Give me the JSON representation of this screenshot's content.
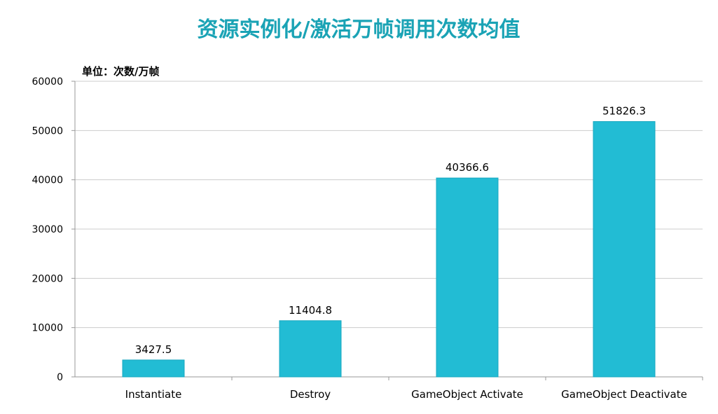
{
  "chart_data": {
    "type": "bar",
    "title": "资源实例化/激活万帧调用次数均值",
    "unit_label": "单位：次数/万帧",
    "categories": [
      "Instantiate",
      "Destroy",
      "GameObject Activate",
      "GameObject Deactivate"
    ],
    "values": [
      3427.5,
      11404.8,
      40366.6,
      51826.3
    ],
    "value_labels": [
      "3427.5",
      "11404.8",
      "40366.6",
      "51826.3"
    ],
    "ylim": [
      0,
      60000
    ],
    "yticks": [
      0,
      10000,
      20000,
      30000,
      40000,
      50000,
      60000
    ],
    "grid": true,
    "legend": "none",
    "colors": {
      "bar": "#22bcd4",
      "bar_edge": "#1aa9c0",
      "title": "#1aa3b5",
      "grid": "#cccccc",
      "axis": "#999999",
      "text": "#000000"
    }
  }
}
